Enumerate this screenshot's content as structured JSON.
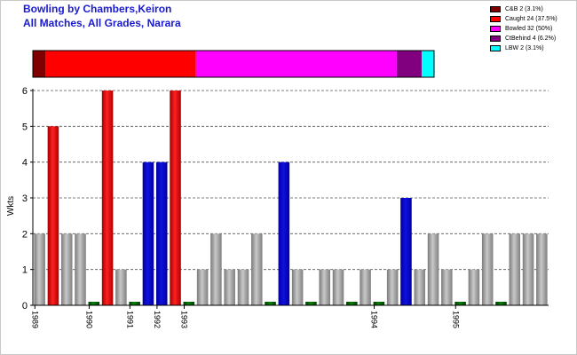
{
  "header": {
    "title_line1": "Bowling by Chambers,Keiron",
    "title_line2": "All Matches, All Grades, Narara"
  },
  "colors": {
    "title": "#1a1ad0",
    "five_wicket": "#ff0000",
    "four_wicket": "#0000cc",
    "regular": "#a0a0a0",
    "zero": "#006000"
  },
  "legend": [
    {
      "label": "C&B 2 (3.1%)",
      "color": "#800000",
      "share": 3.1
    },
    {
      "label": "Caught 24 (37.5%)",
      "color": "#ff0000",
      "share": 37.5
    },
    {
      "label": "Bowled 32 (50%)",
      "color": "#ff00ff",
      "share": 50
    },
    {
      "label": "CtBehind 4 (6.2%)",
      "color": "#800080",
      "share": 6.2
    },
    {
      "label": "LBW 2 (3.1%)",
      "color": "#00ffff",
      "share": 3.1
    }
  ],
  "chart_data": {
    "type": "bar",
    "ylabel": "Wkts",
    "ylim": [
      0,
      6
    ],
    "yticks": [
      "0",
      "1",
      "2",
      "3",
      "4",
      "5",
      "6"
    ],
    "grid": "horizontal dashed",
    "values": [
      2,
      5,
      2,
      2,
      0,
      6,
      1,
      0,
      4,
      4,
      6,
      0,
      1,
      2,
      1,
      1,
      2,
      0,
      4,
      1,
      0,
      1,
      1,
      0,
      1,
      0,
      1,
      3,
      1,
      2,
      1,
      0,
      1,
      2,
      0,
      2,
      2,
      2
    ],
    "season_labels": [
      {
        "index": 0,
        "label": "1989"
      },
      {
        "index": 4,
        "label": "1990"
      },
      {
        "index": 7,
        "label": "1991"
      },
      {
        "index": 9,
        "label": "1992"
      },
      {
        "index": 11,
        "label": "1993"
      },
      {
        "index": 25,
        "label": "1994"
      },
      {
        "index": 31,
        "label": "1995"
      }
    ]
  }
}
